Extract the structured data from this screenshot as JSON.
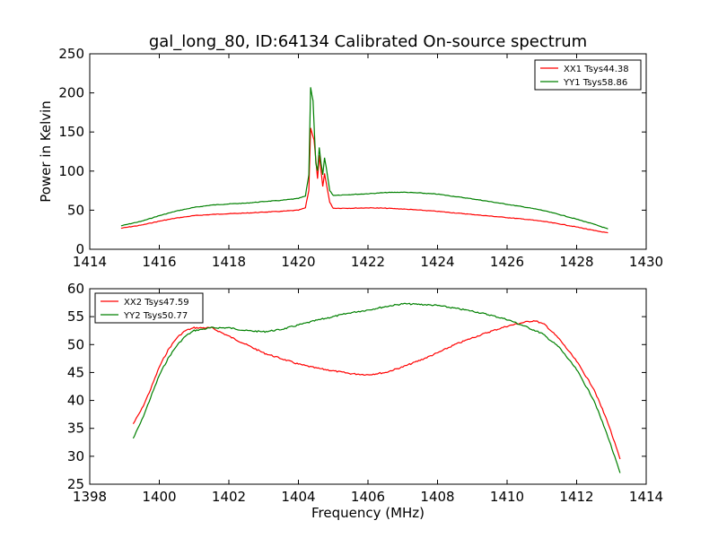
{
  "chart_data": [
    {
      "type": "line",
      "title": "gal_long_80, ID:64134 Calibrated On-source spectrum",
      "xlabel": "",
      "ylabel": "Power in Kelvin",
      "xlim": [
        1414,
        1430
      ],
      "ylim": [
        0,
        250
      ],
      "xticks": [
        1414,
        1416,
        1418,
        1420,
        1422,
        1424,
        1426,
        1428,
        1430
      ],
      "yticks": [
        0,
        50,
        100,
        150,
        200,
        250
      ],
      "grid": false,
      "legend_position": "top-right",
      "series": [
        {
          "name": "XX1 Tsys44.38",
          "color": "#ff0000",
          "points": [
            [
              1414.9,
              27
            ],
            [
              1415.5,
              31
            ],
            [
              1416,
              36
            ],
            [
              1416.5,
              40
            ],
            [
              1417,
              43
            ],
            [
              1417.5,
              44.5
            ],
            [
              1418,
              45.5
            ],
            [
              1418.5,
              46.3
            ],
            [
              1419,
              47.5
            ],
            [
              1419.5,
              48.5
            ],
            [
              1420,
              50
            ],
            [
              1420.2,
              53
            ],
            [
              1420.3,
              75
            ],
            [
              1420.35,
              155
            ],
            [
              1420.45,
              140
            ],
            [
              1420.55,
              90
            ],
            [
              1420.6,
              120
            ],
            [
              1420.65,
              100
            ],
            [
              1420.7,
              80
            ],
            [
              1420.75,
              97
            ],
            [
              1420.8,
              85
            ],
            [
              1420.9,
              60
            ],
            [
              1421,
              52.5
            ],
            [
              1421.5,
              52.5
            ],
            [
              1422,
              53
            ],
            [
              1422.5,
              52.5
            ],
            [
              1423,
              51.5
            ],
            [
              1423.5,
              50
            ],
            [
              1424,
              48.5
            ],
            [
              1424.5,
              46.5
            ],
            [
              1425,
              44.5
            ],
            [
              1425.5,
              42.5
            ],
            [
              1426,
              40.5
            ],
            [
              1426.5,
              38.5
            ],
            [
              1427,
              36
            ],
            [
              1427.5,
              32.5
            ],
            [
              1428,
              28.5
            ],
            [
              1428.5,
              24
            ],
            [
              1428.9,
              21
            ]
          ]
        },
        {
          "name": "YY1 Tsys58.86",
          "color": "#008000",
          "points": [
            [
              1414.9,
              30
            ],
            [
              1415.5,
              36
            ],
            [
              1416,
              43
            ],
            [
              1416.5,
              49
            ],
            [
              1417,
              53.5
            ],
            [
              1417.5,
              56.5
            ],
            [
              1418,
              58
            ],
            [
              1418.5,
              59
            ],
            [
              1419,
              61
            ],
            [
              1419.5,
              62.5
            ],
            [
              1420,
              65
            ],
            [
              1420.2,
              68
            ],
            [
              1420.3,
              95
            ],
            [
              1420.35,
              207
            ],
            [
              1420.42,
              190
            ],
            [
              1420.5,
              110
            ],
            [
              1420.55,
              100
            ],
            [
              1420.6,
              130
            ],
            [
              1420.65,
              110
            ],
            [
              1420.7,
              95
            ],
            [
              1420.75,
              117
            ],
            [
              1420.8,
              105
            ],
            [
              1420.9,
              75
            ],
            [
              1421,
              69
            ],
            [
              1421.5,
              70
            ],
            [
              1422,
              71
            ],
            [
              1422.5,
              72.5
            ],
            [
              1423,
              73
            ],
            [
              1423.5,
              72
            ],
            [
              1424,
              70.5
            ],
            [
              1424.5,
              67.5
            ],
            [
              1425,
              64.5
            ],
            [
              1425.5,
              61
            ],
            [
              1426,
              57.5
            ],
            [
              1426.5,
              54
            ],
            [
              1427,
              50
            ],
            [
              1427.5,
              44.5
            ],
            [
              1428,
              38.5
            ],
            [
              1428.5,
              32
            ],
            [
              1428.9,
              26
            ]
          ]
        }
      ]
    },
    {
      "type": "line",
      "title": "",
      "xlabel": "Frequency (MHz)",
      "ylabel": "",
      "xlim": [
        1398,
        1414
      ],
      "ylim": [
        25,
        60
      ],
      "xticks": [
        1398,
        1400,
        1402,
        1404,
        1406,
        1408,
        1410,
        1412,
        1414
      ],
      "yticks": [
        25,
        30,
        35,
        40,
        45,
        50,
        55,
        60
      ],
      "grid": false,
      "legend_position": "top-left",
      "series": [
        {
          "name": "XX2 Tsys47.59",
          "color": "#ff0000",
          "points": [
            [
              1399.25,
              35.8
            ],
            [
              1399.5,
              38.5
            ],
            [
              1399.75,
              42
            ],
            [
              1400,
              46
            ],
            [
              1400.25,
              49
            ],
            [
              1400.5,
              51.2
            ],
            [
              1400.75,
              52.5
            ],
            [
              1401,
              53
            ],
            [
              1401.5,
              53
            ],
            [
              1402,
              51.5
            ],
            [
              1402.5,
              50
            ],
            [
              1403,
              48.5
            ],
            [
              1403.5,
              47.5
            ],
            [
              1404,
              46.5
            ],
            [
              1404.5,
              45.8
            ],
            [
              1405,
              45.3
            ],
            [
              1405.5,
              44.8
            ],
            [
              1406,
              44.6
            ],
            [
              1406.5,
              45
            ],
            [
              1407,
              46
            ],
            [
              1407.5,
              47.2
            ],
            [
              1408,
              48.5
            ],
            [
              1408.5,
              50
            ],
            [
              1409,
              51.2
            ],
            [
              1409.5,
              52.3
            ],
            [
              1410,
              53.3
            ],
            [
              1410.5,
              54
            ],
            [
              1410.8,
              54.3
            ],
            [
              1411.1,
              53.5
            ],
            [
              1411.5,
              51
            ],
            [
              1412,
              47
            ],
            [
              1412.5,
              42
            ],
            [
              1412.9,
              36
            ],
            [
              1413.25,
              29.5
            ]
          ]
        },
        {
          "name": "YY2 Tsys50.77",
          "color": "#008000",
          "points": [
            [
              1399.25,
              33.2
            ],
            [
              1399.5,
              36.5
            ],
            [
              1399.75,
              40.5
            ],
            [
              1400,
              44.5
            ],
            [
              1400.25,
              47.5
            ],
            [
              1400.5,
              49.8
            ],
            [
              1400.75,
              51.5
            ],
            [
              1401,
              52.5
            ],
            [
              1401.5,
              53
            ],
            [
              1402,
              53
            ],
            [
              1402.5,
              52.5
            ],
            [
              1403,
              52.3
            ],
            [
              1403.5,
              52.7
            ],
            [
              1404,
              53.5
            ],
            [
              1404.5,
              54.3
            ],
            [
              1405,
              55
            ],
            [
              1405.5,
              55.7
            ],
            [
              1406,
              56.2
            ],
            [
              1406.5,
              56.8
            ],
            [
              1407,
              57.3
            ],
            [
              1407.5,
              57.2
            ],
            [
              1408,
              57
            ],
            [
              1408.5,
              56.5
            ],
            [
              1409,
              56
            ],
            [
              1409.5,
              55.3
            ],
            [
              1410,
              54.5
            ],
            [
              1410.5,
              53.3
            ],
            [
              1411,
              52
            ],
            [
              1411.5,
              49.5
            ],
            [
              1412,
              45.5
            ],
            [
              1412.5,
              40
            ],
            [
              1412.9,
              33.5
            ],
            [
              1413.25,
              27
            ]
          ]
        }
      ]
    }
  ]
}
